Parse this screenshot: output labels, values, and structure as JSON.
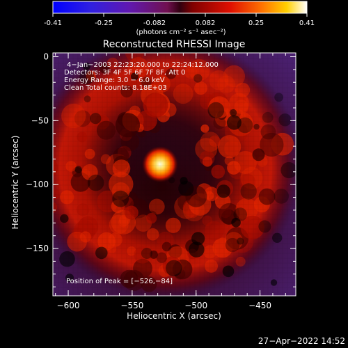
{
  "colorbar": {
    "ticks": [
      "-0.41",
      "-0.25",
      "-0.082",
      "0.082",
      "0.25",
      "0.41"
    ],
    "unit_label": "(photons cm⁻² s⁻¹ asec⁻²)"
  },
  "plot": {
    "title": "Reconstructed RHESSI Image",
    "xlabel": "Heliocentric X (arcsec)",
    "ylabel": "Heliocentric Y (arcsec)",
    "x_ticks": [
      "−600",
      "−550",
      "−500",
      "−450"
    ],
    "y_ticks": [
      "0",
      "−50",
      "−100",
      "−150"
    ],
    "xlim": [
      -612,
      -422
    ],
    "ylim": [
      -187,
      3
    ]
  },
  "info": {
    "line1": "4−Jan−2003 22:23:20.000 to 22:24:12.000",
    "line2": "Detectors: 3F 4F 5F 6F 7F 8F, Att 0",
    "line3": "Energy Range: 3.0 − 6.0 keV",
    "line4": "Clean    Total counts: 8.18E+03"
  },
  "peak_label": "Position of Peak = [−526,−84]",
  "footer_date": "27−Apr−2022 14:52",
  "colors": {
    "background": "#000000",
    "flare_core": "#ffffc0",
    "ring": "#c81000",
    "background_emission": "#3a1060"
  }
}
